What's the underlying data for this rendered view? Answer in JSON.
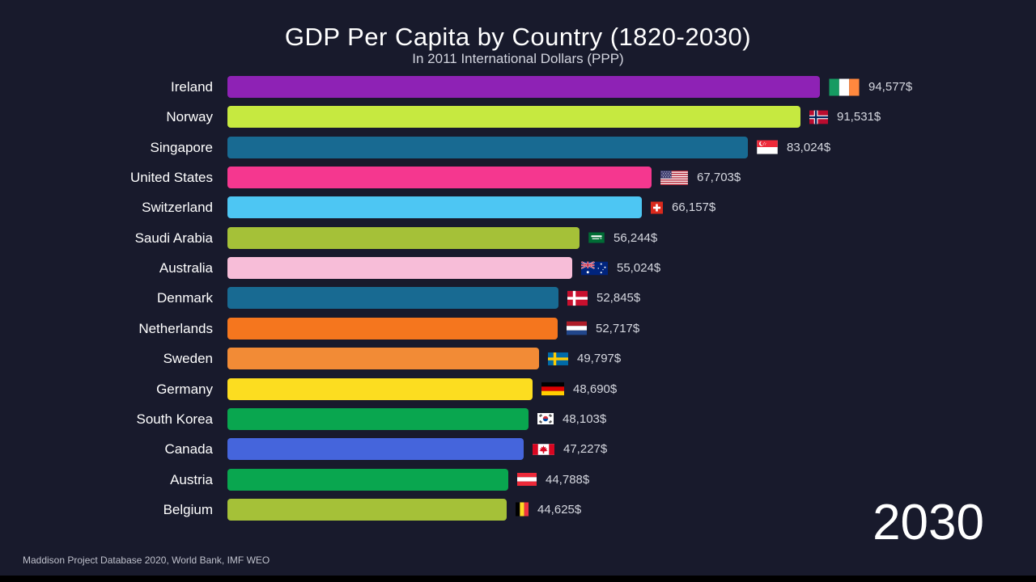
{
  "title": "GDP Per Capita by Country (1820-2030)",
  "subtitle": "In 2011 International Dollars (PPP)",
  "year_label": "2030",
  "source": "Maddison Project Database 2020, World Bank, IMF WEO",
  "colors": {
    "background": "#181a2c",
    "letterbox": "#000000",
    "title_text": "#ffffff",
    "label_text": "#ffffff",
    "value_text": "#d6d8e0"
  },
  "chart_data": {
    "type": "bar",
    "orientation": "horizontal",
    "title": "GDP Per Capita by Country (1820-2030)",
    "subtitle": "In 2011 International Dollars (PPP)",
    "year": "2030",
    "unit": "2011 International Dollars (PPP)",
    "value_suffix": "$",
    "max_value": 94577,
    "legend": "none",
    "grid": false,
    "rows": [
      {
        "country": "Ireland",
        "value": 94577,
        "display": "94,577$",
        "color": "#8e22b5",
        "flag": "ireland"
      },
      {
        "country": "Norway",
        "value": 91531,
        "display": "91,531$",
        "color": "#c6e940",
        "flag": "norway"
      },
      {
        "country": "Singapore",
        "value": 83024,
        "display": "83,024$",
        "color": "#186a92",
        "flag": "singapore"
      },
      {
        "country": "United States",
        "value": 67703,
        "display": "67,703$",
        "color": "#f5378f",
        "flag": "united-states"
      },
      {
        "country": "Switzerland",
        "value": 66157,
        "display": "66,157$",
        "color": "#4dc6f3",
        "flag": "switzerland"
      },
      {
        "country": "Saudi Arabia",
        "value": 56244,
        "display": "56,244$",
        "color": "#a5c138",
        "flag": "saudi-arabia"
      },
      {
        "country": "Australia",
        "value": 55024,
        "display": "55,024$",
        "color": "#f7bdd8",
        "flag": "australia"
      },
      {
        "country": "Denmark",
        "value": 52845,
        "display": "52,845$",
        "color": "#186a92",
        "flag": "denmark"
      },
      {
        "country": "Netherlands",
        "value": 52717,
        "display": "52,717$",
        "color": "#f5761e",
        "flag": "netherlands"
      },
      {
        "country": "Sweden",
        "value": 49797,
        "display": "49,797$",
        "color": "#f28b36",
        "flag": "sweden"
      },
      {
        "country": "Germany",
        "value": 48690,
        "display": "48,690$",
        "color": "#fcdd20",
        "flag": "germany"
      },
      {
        "country": "South Korea",
        "value": 48103,
        "display": "48,103$",
        "color": "#09a64f",
        "flag": "south-korea"
      },
      {
        "country": "Canada",
        "value": 47227,
        "display": "47,227$",
        "color": "#4565dc",
        "flag": "canada"
      },
      {
        "country": "Austria",
        "value": 44788,
        "display": "44,788$",
        "color": "#09a64f",
        "flag": "austria"
      },
      {
        "country": "Belgium",
        "value": 44625,
        "display": "44,625$",
        "color": "#a5c138",
        "flag": "belgium"
      }
    ]
  }
}
